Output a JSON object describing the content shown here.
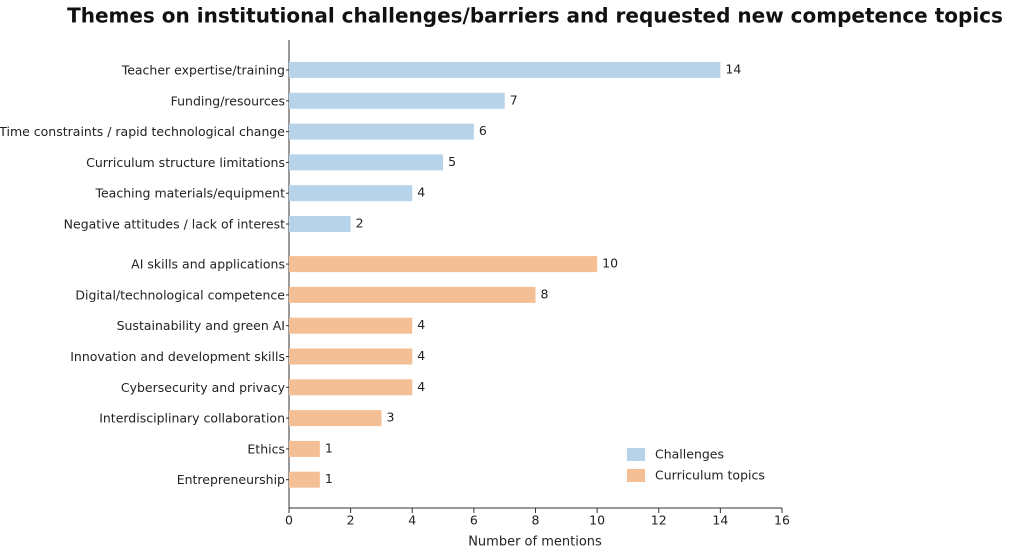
{
  "chart_data": {
    "type": "hbar",
    "title": "Themes on institutional challenges/barriers and requested new competence topics",
    "x_label": "Number of mentions",
    "categories": [
      "Teacher expertise/training",
      "Funding/resources",
      "Time constraints / rapid technological change",
      "Curriculum structure limitations",
      "Teaching materials/equipment",
      "Negative attitudes / lack of interest",
      "AI skills and applications",
      "Digital/technological competence",
      "Sustainability and green AI",
      "Innovation and development skills",
      "Cybersecurity and privacy",
      "Interdisciplinary collaboration",
      "Ethics",
      "Entrepreneurship"
    ],
    "series": [
      {
        "name": "Challenges",
        "color": "#b7d3ea",
        "values": [
          14,
          7,
          6,
          5,
          4,
          2,
          null,
          null,
          null,
          null,
          null,
          null,
          null,
          null
        ]
      },
      {
        "name": "Curriculum topics",
        "color": "#f5bf96",
        "values": [
          null,
          null,
          null,
          null,
          null,
          null,
          10,
          8,
          4,
          4,
          4,
          3,
          1,
          1
        ]
      }
    ],
    "xlim": [
      0,
      16
    ],
    "xticks": [
      0,
      2,
      4,
      6,
      8,
      10,
      12,
      14,
      16
    ],
    "grid": false,
    "legend": "lower right"
  }
}
